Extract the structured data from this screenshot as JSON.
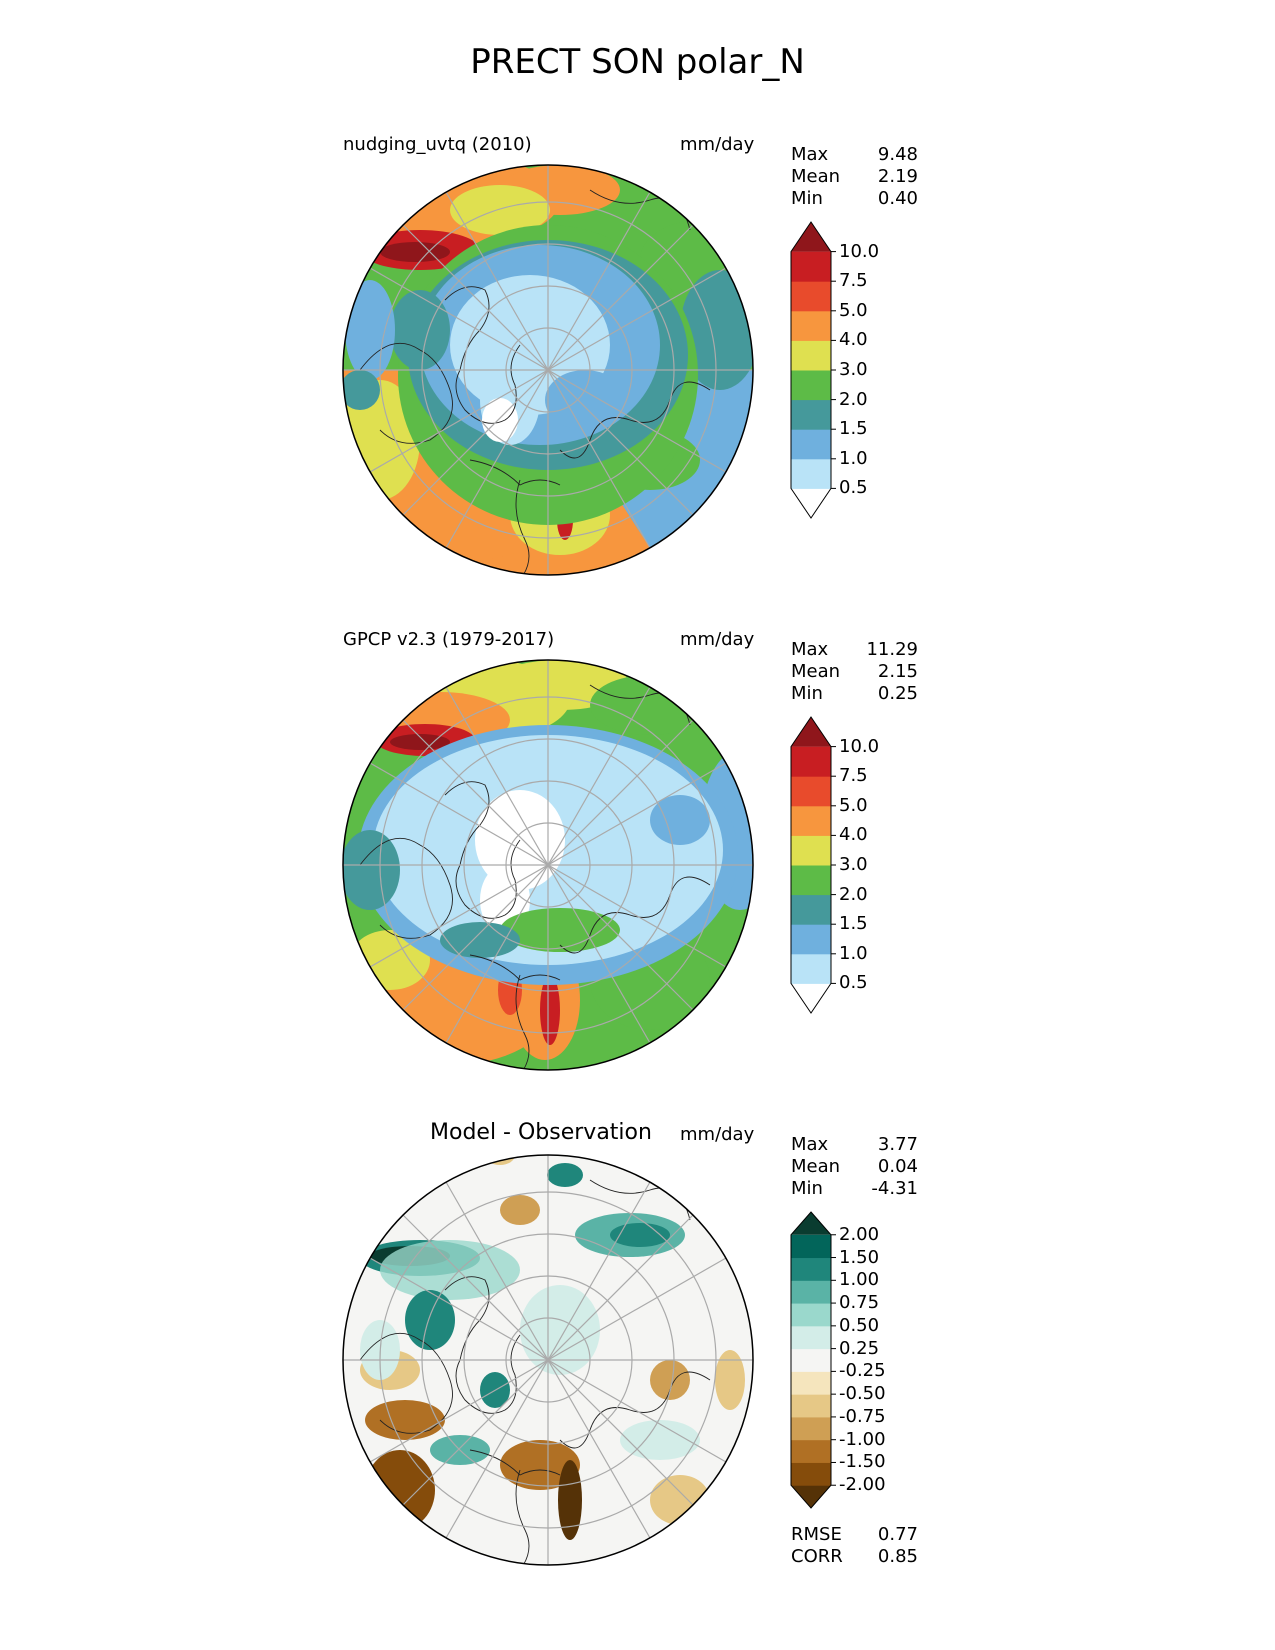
{
  "figure_title": "PRECT SON polar_N",
  "panels": [
    {
      "title": "nudging_uvtq (2010)",
      "units": "mm/day",
      "stats": [
        {
          "label": "Max",
          "value": "9.48"
        },
        {
          "label": "Mean",
          "value": "2.19"
        },
        {
          "label": "Min",
          "value": "0.40"
        }
      ],
      "colorbar": {
        "ticks": [
          "10.0",
          "7.5",
          "5.0",
          "4.0",
          "3.0",
          "2.0",
          "1.5",
          "1.0",
          "0.5"
        ],
        "colors": [
          "#ffffff",
          "#b9e3f7",
          "#6fb0de",
          "#45999b",
          "#5dbb47",
          "#dfe050",
          "#f7963e",
          "#e84b2c",
          "#c81e22",
          "#8f161b"
        ]
      }
    },
    {
      "title": "GPCP v2.3 (1979-2017)",
      "units": "mm/day",
      "stats": [
        {
          "label": "Max",
          "value": "11.29"
        },
        {
          "label": "Mean",
          "value": "2.15"
        },
        {
          "label": "Min",
          "value": "0.25"
        }
      ],
      "colorbar": {
        "ticks": [
          "10.0",
          "7.5",
          "5.0",
          "4.0",
          "3.0",
          "2.0",
          "1.5",
          "1.0",
          "0.5"
        ],
        "colors": [
          "#ffffff",
          "#b9e3f7",
          "#6fb0de",
          "#45999b",
          "#5dbb47",
          "#dfe050",
          "#f7963e",
          "#e84b2c",
          "#c81e22",
          "#8f161b"
        ]
      }
    },
    {
      "title": "Model - Observation",
      "units": "mm/day",
      "stats": [
        {
          "label": "Max",
          "value": "3.77"
        },
        {
          "label": "Mean",
          "value": "0.04"
        },
        {
          "label": "Min",
          "value": "-4.31"
        }
      ],
      "colorbar": {
        "ticks": [
          "2.00",
          "1.50",
          "1.00",
          "0.75",
          "0.50",
          "0.25",
          "-0.25",
          "-0.50",
          "-0.75",
          "-1.00",
          "-1.50",
          "-2.00"
        ],
        "colors": [
          "#553207",
          "#854c0b",
          "#b07024",
          "#cf9f54",
          "#e6c886",
          "#f5e5bd",
          "#f5f5f3",
          "#d3ede8",
          "#9ad8cc",
          "#5ab3a6",
          "#1f867b",
          "#02655a",
          "#0a3c30"
        ]
      },
      "metrics": [
        {
          "label": "RMSE",
          "value": "0.77"
        },
        {
          "label": "CORR",
          "value": "0.85"
        }
      ]
    }
  ]
}
